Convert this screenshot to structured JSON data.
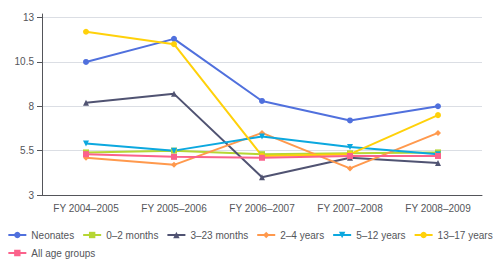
{
  "chart_data": {
    "type": "line",
    "categories": [
      "FY 2004–2005",
      "FY 2005–2006",
      "FY 2006–2007",
      "FY 2007–2008",
      "FY 2008–2009"
    ],
    "series": [
      {
        "name": "Neonates",
        "values": [
          10.5,
          11.8,
          8.3,
          7.2,
          8.0
        ],
        "marker": "circle"
      },
      {
        "name": "0–2 months",
        "values": [
          5.4,
          5.5,
          5.3,
          5.35,
          5.4
        ],
        "marker": "square"
      },
      {
        "name": "3–23 months",
        "values": [
          8.2,
          8.7,
          4.0,
          5.1,
          4.8
        ],
        "marker": "triangle"
      },
      {
        "name": "2–4 years",
        "values": [
          5.1,
          4.7,
          6.5,
          4.5,
          6.5
        ],
        "marker": "diamond"
      },
      {
        "name": "5–12 years",
        "values": [
          5.9,
          5.5,
          6.3,
          5.7,
          5.3
        ],
        "marker": "triangle_down"
      },
      {
        "name": "13–17 years",
        "values": [
          12.2,
          11.5,
          5.2,
          5.3,
          7.5
        ],
        "marker": "circle"
      },
      {
        "name": "All age groups",
        "values": [
          5.3,
          5.15,
          5.1,
          5.2,
          5.2
        ],
        "marker": "square"
      }
    ],
    "ylim": [
      3,
      13.2
    ],
    "yticks": [
      3,
      5.5,
      8,
      10.5,
      13
    ],
    "grid": true,
    "legend": "bottom"
  }
}
